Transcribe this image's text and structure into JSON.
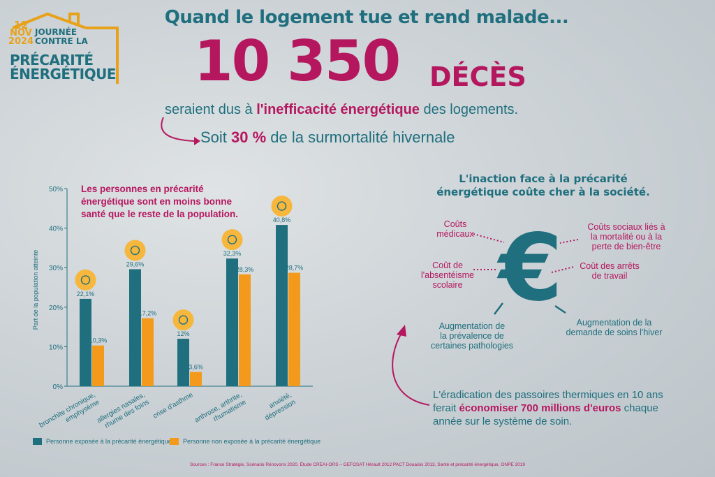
{
  "logo": {
    "day": "12",
    "month": "NOV",
    "year": "2024",
    "line1": "JOURNÉE",
    "line2": "CONTRE LA",
    "big1": "PRÉCARITÉ",
    "big2": "ÉNERGÉTIQUE"
  },
  "headline": "Quand le logement tue et rend malade...",
  "big_number": "10 350",
  "big_unit": "DÉCÈS",
  "line2": {
    "before": "seraient dus à ",
    "bold": "l'inefficacité énergétique",
    "after": " des logements."
  },
  "line3": {
    "before": "Soit ",
    "bold": "30 %",
    "after": " de la surmortalité hivernale"
  },
  "chart_note": "Les personnes en précarité énergétique sont en moins bonne santé que le reste de la population.",
  "chart_data": {
    "type": "bar",
    "ylabel": "Part de la population atteinte",
    "ylim": [
      0,
      50
    ],
    "yticks": [
      "0%",
      "10%",
      "20%",
      "30%",
      "40%",
      "50%"
    ],
    "categories": [
      [
        "bronchite chronique,",
        "emphysème"
      ],
      [
        "allergies nasales,",
        "rhume des foins"
      ],
      [
        "crise d'asthme"
      ],
      [
        "arthrose, arthrite,",
        "rhumatisme"
      ],
      [
        "anxiété,",
        "dépression"
      ]
    ],
    "series": [
      {
        "name": "Personne exposée à la précarité énergétique",
        "color": "#1f6f7e",
        "values": [
          22.1,
          29.6,
          12,
          32.3,
          40.8
        ],
        "labels": [
          "22,1%",
          "29,6%",
          "12%",
          "32,3%",
          "40,8%"
        ]
      },
      {
        "name": "Personne non exposée à la précarité énergétique",
        "color": "#f39a1c",
        "values": [
          10.3,
          17.2,
          3.6,
          28.3,
          28.7
        ],
        "labels": [
          "10,3%",
          "17,2%",
          "3,6%",
          "28,3%",
          "28,7%"
        ]
      }
    ],
    "icons": [
      "lungs-icon",
      "allergy-face-icon",
      "inhaler-icon",
      "knee-joint-icon",
      "anxious-head-icon"
    ]
  },
  "right": {
    "title": "L'inaction face à la précarité énergétique coûte cher à la société.",
    "euro": "€",
    "costs": {
      "medical": [
        "Coûts",
        "médicaux"
      ],
      "social": [
        "Coûts sociaux liés à",
        "la mortalité ou à la",
        "perte de bien-être"
      ],
      "school": [
        "Coût de",
        "l'absentéisme",
        "scolaire"
      ],
      "work": [
        "Coût des arrêts",
        "de travail"
      ],
      "prevalence": [
        "Augmentation de",
        "la prévalence de",
        "certaines pathologies"
      ],
      "demand": [
        "Augmentation de la",
        "demande de soins l'hiver"
      ]
    },
    "conclusion": {
      "before": "L'éradication des passoires thermiques en 10 ans ferait ",
      "bold": "économiser 700 millions d'euros",
      "after": " chaque année sur le système de soin."
    }
  },
  "sources": "Sources : France Stratégie, Scénario Rénovons 2020, Étude CREAI-ORS – GEFOSAT Hérault 2012 PACT Douaisis 2013, Santé et précarité énergétique, ONPE 2019",
  "colors": {
    "teal": "#1f6f7e",
    "magenta": "#b5175f",
    "orange": "#f39a1c",
    "icon_bg": "#f6b73c"
  }
}
